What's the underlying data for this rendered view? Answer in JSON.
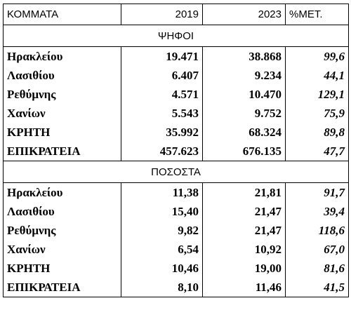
{
  "header": {
    "party": "ΚΟΜΜΑΤΑ",
    "y2019": "2019",
    "y2023": "2023",
    "change": "%ΜΕΤ."
  },
  "sections": [
    {
      "title": "ΨΗΦΟΙ",
      "rows": [
        {
          "name": "Ηρακλείου",
          "y2019": "19.471",
          "y2023": "38.868",
          "change": "99,6"
        },
        {
          "name": "Λασιθίου",
          "y2019": "6.407",
          "y2023": "9.234",
          "change": "44,1"
        },
        {
          "name": "Ρεθύμνης",
          "y2019": "4.571",
          "y2023": "10.470",
          "change": "129,1"
        },
        {
          "name": "Χανίων",
          "y2019": "5.543",
          "y2023": "9.752",
          "change": "75,9"
        },
        {
          "name": "ΚΡΗΤΗ",
          "y2019": "35.992",
          "y2023": "68.324",
          "change": "89,8"
        },
        {
          "name": "ΕΠΙΚΡΑΤΕΙΑ",
          "y2019": "457.623",
          "y2023": "676.135",
          "change": "47,7"
        }
      ]
    },
    {
      "title": "ΠΟΣΟΣΤΑ",
      "rows": [
        {
          "name": "Ηρακλείου",
          "y2019": "11,38",
          "y2023": "21,81",
          "change": "91,7"
        },
        {
          "name": "Λασιθίου",
          "y2019": "15,40",
          "y2023": "21,47",
          "change": "39,4"
        },
        {
          "name": "Ρεθύμνης",
          "y2019": "9,82",
          "y2023": "21,47",
          "change": "118,6"
        },
        {
          "name": "Χανίων",
          "y2019": "6,54",
          "y2023": "10,92",
          "change": "67,0"
        },
        {
          "name": "ΚΡΗΤΗ",
          "y2019": "10,46",
          "y2023": "19,00",
          "change": "81,6"
        },
        {
          "name": "ΕΠΙΚΡΑΤΕΙΑ",
          "y2019": "8,10",
          "y2023": "11,46",
          "change": "41,5"
        }
      ]
    }
  ]
}
